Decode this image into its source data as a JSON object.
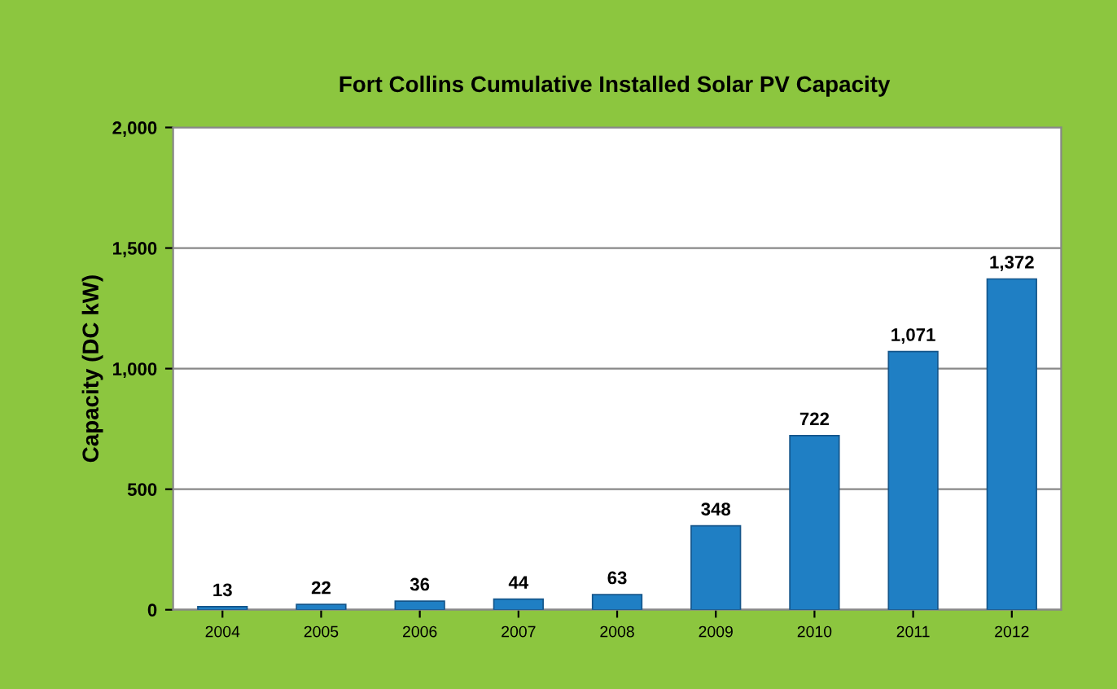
{
  "chart_data": {
    "type": "bar",
    "title": "Fort Collins Cumulative Installed Solar PV Capacity",
    "ylabel": "Capacity (DC kW)",
    "categories": [
      "2004",
      "2005",
      "2006",
      "2007",
      "2008",
      "2009",
      "2010",
      "2011",
      "2012"
    ],
    "values": [
      13,
      22,
      36,
      44,
      63,
      348,
      722,
      1071,
      1372
    ],
    "value_labels": [
      "13",
      "22",
      "36",
      "44",
      "63",
      "348",
      "722",
      "1,071",
      "1,372"
    ],
    "color": "#1f7fc4",
    "ylim": [
      0,
      2000
    ],
    "yticks": [
      0,
      500,
      {
        "value": 1000,
        "label": "1,000"
      },
      {
        "value": 1500,
        "label": "1,500"
      },
      {
        "value": 2000,
        "label": "2,000"
      }
    ],
    "grid": "y",
    "legend": false
  }
}
